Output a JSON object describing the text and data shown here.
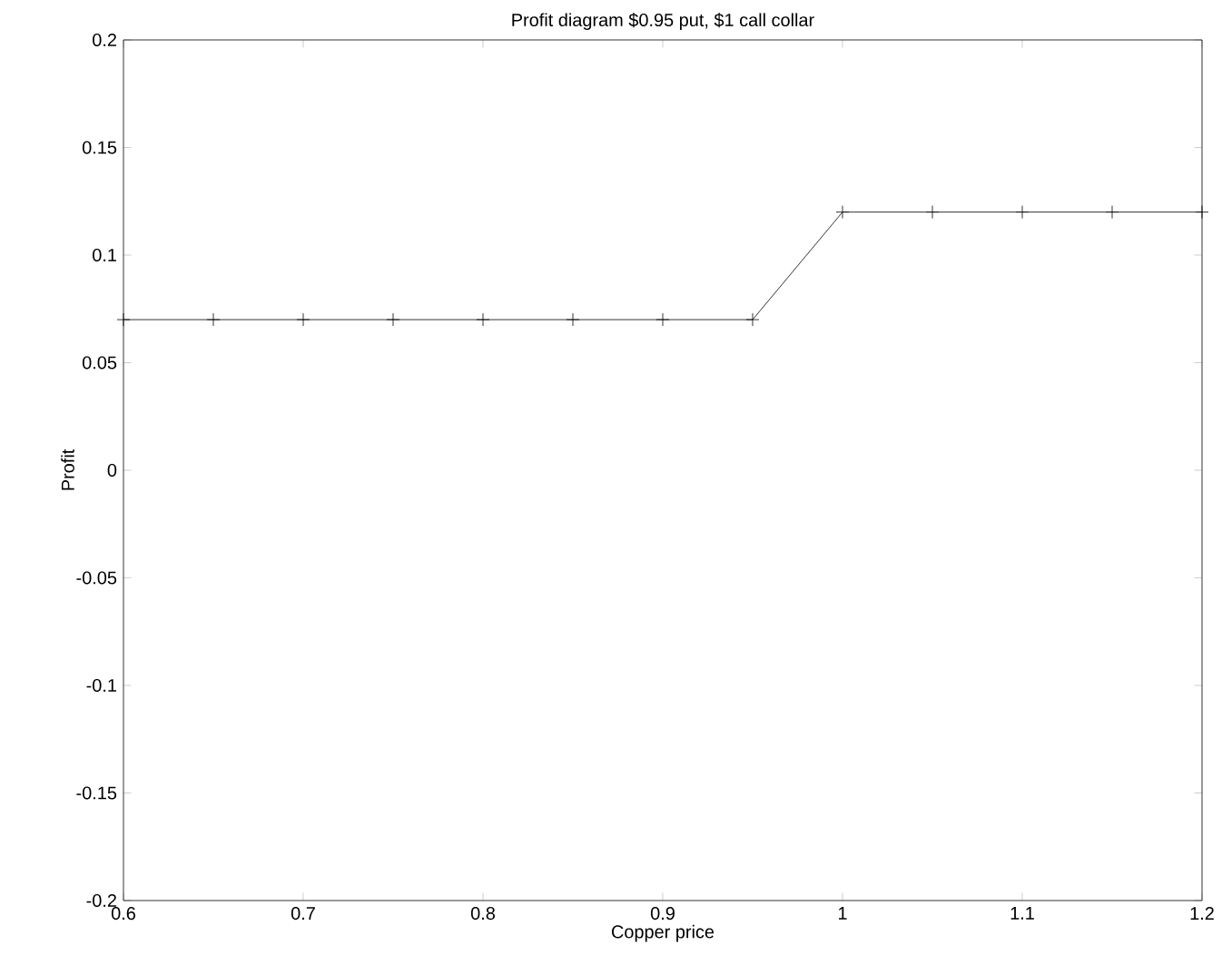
{
  "chart_data": {
    "type": "line",
    "title": "Profit diagram $0.95 put, $1 call collar",
    "xlabel": "Copper price",
    "ylabel": "Profit",
    "x": [
      0.6,
      0.65,
      0.7,
      0.75,
      0.8,
      0.85,
      0.9,
      0.95,
      1.0,
      1.05,
      1.1,
      1.15,
      1.2
    ],
    "series": [
      {
        "color": "#000000",
        "values": [
          0.07,
          0.07,
          0.07,
          0.07,
          0.07,
          0.07,
          0.07,
          0.07,
          0.12,
          0.12,
          0.12,
          0.12,
          0.12
        ]
      }
    ],
    "xlim": [
      0.6,
      1.2
    ],
    "ylim": [
      -0.2,
      0.2
    ],
    "xticks": [
      0.6,
      0.7,
      0.8,
      0.9,
      1,
      1.1,
      1.2
    ],
    "yticks": [
      -0.2,
      -0.15,
      -0.1,
      -0.05,
      0,
      0.05,
      0.1,
      0.15,
      0.2
    ],
    "marker": "cross",
    "line_style": "solid"
  }
}
